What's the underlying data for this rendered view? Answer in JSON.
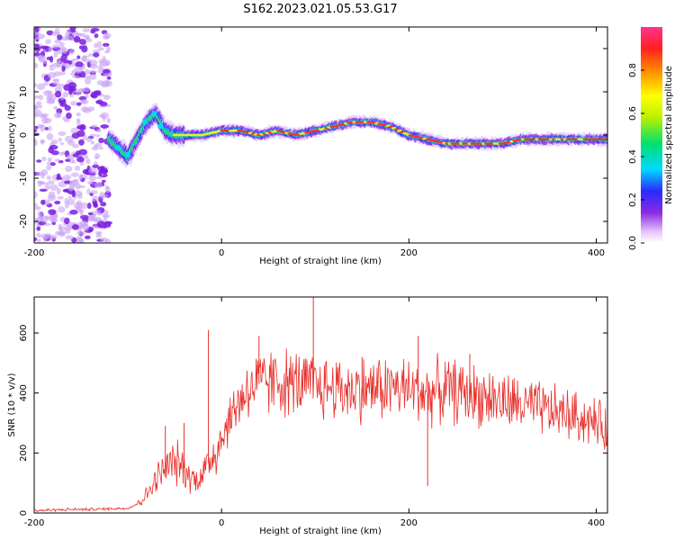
{
  "figure_title": "S162.2023.021.05.53.G17",
  "colors": {
    "snr_line": "#e8302a",
    "axis": "#000000",
    "dot_spread": "#8a2be2"
  },
  "chart_data": [
    {
      "type": "heatmap",
      "xlabel": "Height of straight line (km)",
      "ylabel": "Frequency (Hz)",
      "xlim": [
        -200,
        412
      ],
      "ylim": [
        -25,
        25
      ],
      "xticks": [
        -200,
        0,
        200,
        400
      ],
      "yticks": [
        -20,
        -10,
        0,
        10,
        20
      ],
      "grid": false,
      "colorbar": {
        "label": "Normalized spectral amplitude",
        "range": [
          0.0,
          1.0
        ],
        "ticks": [
          0.0,
          0.2,
          0.4,
          0.6,
          0.8
        ],
        "tick_labels": [
          "0.0",
          "0.2",
          "0.4",
          "0.6",
          "0.8"
        ],
        "colormap": "rainbow-violet-to-red"
      },
      "ridge_frequency": {
        "x": [
          -120,
          -110,
          -100,
          -90,
          -80,
          -70,
          -60,
          -50,
          -40,
          -20,
          0,
          20,
          40,
          60,
          80,
          100,
          120,
          140,
          160,
          180,
          200,
          220,
          240,
          260,
          280,
          300,
          320,
          340,
          360,
          380,
          400,
          412
        ],
        "y": [
          -1,
          -3,
          -5,
          -1,
          3,
          5,
          1,
          0,
          0,
          0,
          1,
          1,
          0,
          1,
          0,
          1,
          2,
          3,
          3,
          2,
          0,
          -1,
          -2,
          -2,
          -2,
          -2,
          -1,
          -1,
          -1,
          -1,
          -1,
          -1
        ]
      },
      "noise_region": {
        "x_range": [
          -200,
          -120
        ],
        "frequency_range": [
          -25,
          25
        ]
      }
    },
    {
      "type": "line",
      "xlabel": "Height of straight line (km)",
      "ylabel": "SNR (10 * v/v)",
      "xlim": [
        -200,
        412
      ],
      "ylim": [
        0,
        720
      ],
      "xticks": [
        -200,
        0,
        200,
        400
      ],
      "yticks": [
        0,
        200,
        400,
        600
      ],
      "grid": false,
      "series": [
        {
          "x": [
            -200,
            -180,
            -160,
            -140,
            -120,
            -100,
            -90,
            -80,
            -70,
            -60,
            -50,
            -40,
            -30,
            -20,
            -10,
            0,
            10,
            20,
            30,
            40,
            60,
            80,
            100,
            120,
            140,
            160,
            180,
            200,
            220,
            240,
            260,
            280,
            300,
            320,
            340,
            360,
            380,
            400,
            412
          ],
          "y": [
            8,
            10,
            12,
            12,
            14,
            16,
            30,
            60,
            110,
            150,
            170,
            150,
            110,
            130,
            190,
            250,
            320,
            380,
            420,
            430,
            440,
            430,
            420,
            420,
            410,
            415,
            420,
            410,
            400,
            410,
            400,
            390,
            370,
            360,
            345,
            335,
            320,
            300,
            280
          ],
          "spikes": [
            {
              "x": -60,
              "y": 290
            },
            {
              "x": -40,
              "y": 300
            },
            {
              "x": -14,
              "y": 610
            },
            {
              "x": 40,
              "y": 590
            },
            {
              "x": 98,
              "y": 720
            },
            {
              "x": 150,
              "y": 520
            },
            {
              "x": 210,
              "y": 590
            },
            {
              "x": 220,
              "y": 90
            },
            {
              "x": 265,
              "y": 530
            }
          ]
        }
      ]
    }
  ]
}
